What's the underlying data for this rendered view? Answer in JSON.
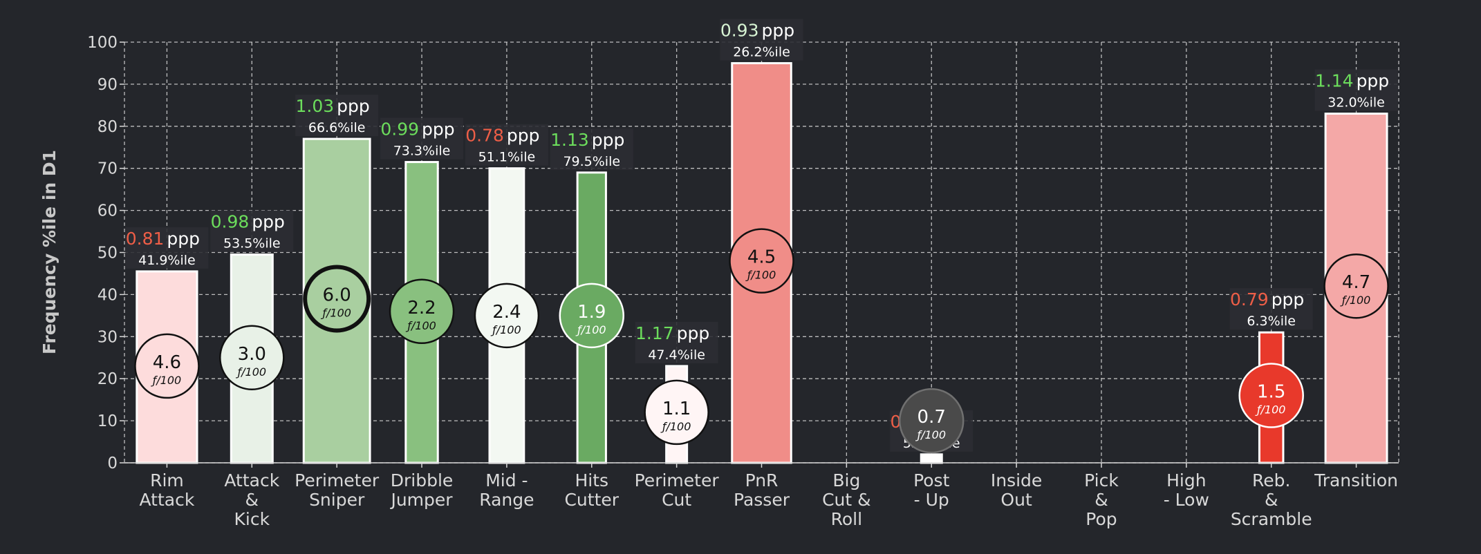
{
  "chart_data": {
    "type": "bar",
    "ylabel": "Frequency %ile in D1",
    "ylim": [
      0,
      100
    ],
    "yticks": [
      0,
      10,
      20,
      30,
      40,
      50,
      60,
      70,
      80,
      90,
      100
    ],
    "grid": true,
    "ppp_suffix": "ppp",
    "freq_suffix": "ƒ/100",
    "categories": [
      {
        "label": [
          "Rim",
          "Attack"
        ],
        "value": 45.5,
        "ppp": "0.81",
        "ppp_color": "#ee5e47",
        "pctile": "41.9%ile",
        "freq": "4.6",
        "bar_color": "#fddcdc",
        "circle_fill": "#fddcdc",
        "circle_text": "#111111",
        "circle_stroke": "#111111",
        "circle_y": 23
      },
      {
        "label": [
          "Attack",
          "&",
          "Kick"
        ],
        "value": 49.5,
        "ppp": "0.98",
        "ppp_color": "#6cdd5c",
        "pctile": "53.5%ile",
        "freq": "3.0",
        "bar_color": "#e8f1e7",
        "circle_fill": "#e8f1e7",
        "circle_text": "#111111",
        "circle_stroke": "#111111",
        "circle_y": 25
      },
      {
        "label": [
          "Perimeter",
          "Sniper"
        ],
        "value": 77,
        "ppp": "1.03",
        "ppp_color": "#6cdd5c",
        "pctile": "66.6%ile",
        "freq": "6.0",
        "bar_color": "#a9cfa0",
        "circle_fill": "#a9cfa0",
        "circle_text": "#111111",
        "circle_stroke": "#111111",
        "circle_y": 39
      },
      {
        "label": [
          "Dribble",
          "Jumper"
        ],
        "value": 71.5,
        "ppp": "0.99",
        "ppp_color": "#6cdd5c",
        "pctile": "73.3%ile",
        "freq": "2.2",
        "bar_color": "#89c07f",
        "circle_fill": "#89c07f",
        "circle_text": "#111111",
        "circle_stroke": "#111111",
        "circle_y": 36
      },
      {
        "label": [
          "Mid -",
          "Range"
        ],
        "value": 70,
        "ppp": "0.78",
        "ppp_color": "#ee5e47",
        "pctile": "51.1%ile",
        "freq": "2.4",
        "bar_color": "#f3f8f2",
        "circle_fill": "#f3f8f2",
        "circle_text": "#111111",
        "circle_stroke": "#111111",
        "circle_y": 35
      },
      {
        "label": [
          "Hits",
          "Cutter"
        ],
        "value": 69,
        "ppp": "1.13",
        "ppp_color": "#6cdd5c",
        "pctile": "79.5%ile",
        "freq": "1.9",
        "bar_color": "#6aaa62",
        "circle_fill": "#6aaa62",
        "circle_text": "#ffffff",
        "circle_stroke": "#ffffff",
        "circle_y": 35
      },
      {
        "label": [
          "Perimeter",
          "Cut"
        ],
        "value": 23,
        "ppp": "1.17",
        "ppp_color": "#6cdd5c",
        "pctile": "47.4%ile",
        "freq": "1.1",
        "bar_color": "#fff5f5",
        "circle_fill": "#fff5f5",
        "circle_text": "#111111",
        "circle_stroke": "#111111",
        "circle_y": 12
      },
      {
        "label": [
          "PnR",
          "Passer"
        ],
        "value": 95,
        "ppp": "0.93",
        "ppp_color": "#d7f3d3",
        "pctile": "26.2%ile",
        "freq": "4.5",
        "bar_color": "#f08d88",
        "circle_fill": "#f08d88",
        "circle_text": "#111111",
        "circle_stroke": "#111111",
        "circle_y": 48
      },
      {
        "label": [
          "Big",
          "Cut &",
          "Roll"
        ],
        "value": null
      },
      {
        "label": [
          "Post",
          "- Up"
        ],
        "value": 2,
        "ppp": "0.83",
        "ppp_color": "#ee5e47",
        "pctile": "52.5%ile",
        "freq": "0.7",
        "bar_color": "#ffffff",
        "circle_fill": "#4a4a4a",
        "circle_text": "#ffffff",
        "circle_stroke": "#707070",
        "circle_y": 10
      },
      {
        "label": [
          "Inside",
          "Out"
        ],
        "value": null
      },
      {
        "label": [
          "Pick",
          "&",
          "Pop"
        ],
        "value": null
      },
      {
        "label": [
          "High",
          "- Low"
        ],
        "value": null
      },
      {
        "label": [
          "Reb.",
          "&",
          "Scramble"
        ],
        "value": 31,
        "ppp": "0.79",
        "ppp_color": "#ee5e47",
        "pctile": "6.3%ile",
        "freq": "1.5",
        "bar_color": "#e8392b",
        "circle_fill": "#e8392b",
        "circle_text": "#ffffff",
        "circle_stroke": "#ffffff",
        "circle_y": 16
      },
      {
        "label": [
          "Transition"
        ],
        "value": 83,
        "ppp": "1.14",
        "ppp_color": "#6cdd5c",
        "pctile": "32.0%ile",
        "freq": "4.7",
        "bar_color": "#f4a8a7",
        "circle_fill": "#f4a8a7",
        "circle_text": "#111111",
        "circle_stroke": "#111111",
        "circle_y": 42
      }
    ]
  }
}
